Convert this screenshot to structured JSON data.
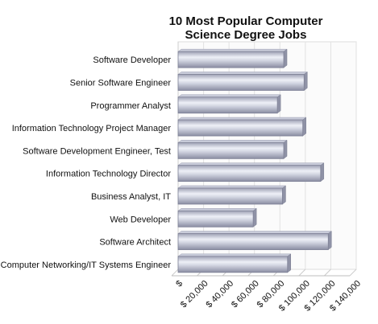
{
  "chart_data": {
    "type": "bar",
    "orientation": "horizontal",
    "title_lines": [
      "10 Most Popular Computer",
      "Science Degree Jobs"
    ],
    "categories": [
      "Software Developer",
      "Senior Software Engineer",
      "Programmer Analyst",
      "Information Technology Project Manager",
      "Software Development Engineer, Test",
      "Information Technology Director",
      "Business Analyst, IT",
      "Web Developer",
      "Software Architect",
      "Computer Networking/IT Systems Engineer"
    ],
    "values": [
      83000,
      99000,
      78000,
      98000,
      83000,
      112000,
      82000,
      59000,
      118000,
      86000
    ],
    "xlim": [
      0,
      140000
    ],
    "tick_labels": [
      "$",
      "$ 20,000",
      "$ 40,000",
      "$ 60,000",
      "$ 80,000",
      "$ 100,000",
      "$ 120,000",
      "$ 140,000"
    ],
    "grid": true,
    "legend": "none"
  }
}
